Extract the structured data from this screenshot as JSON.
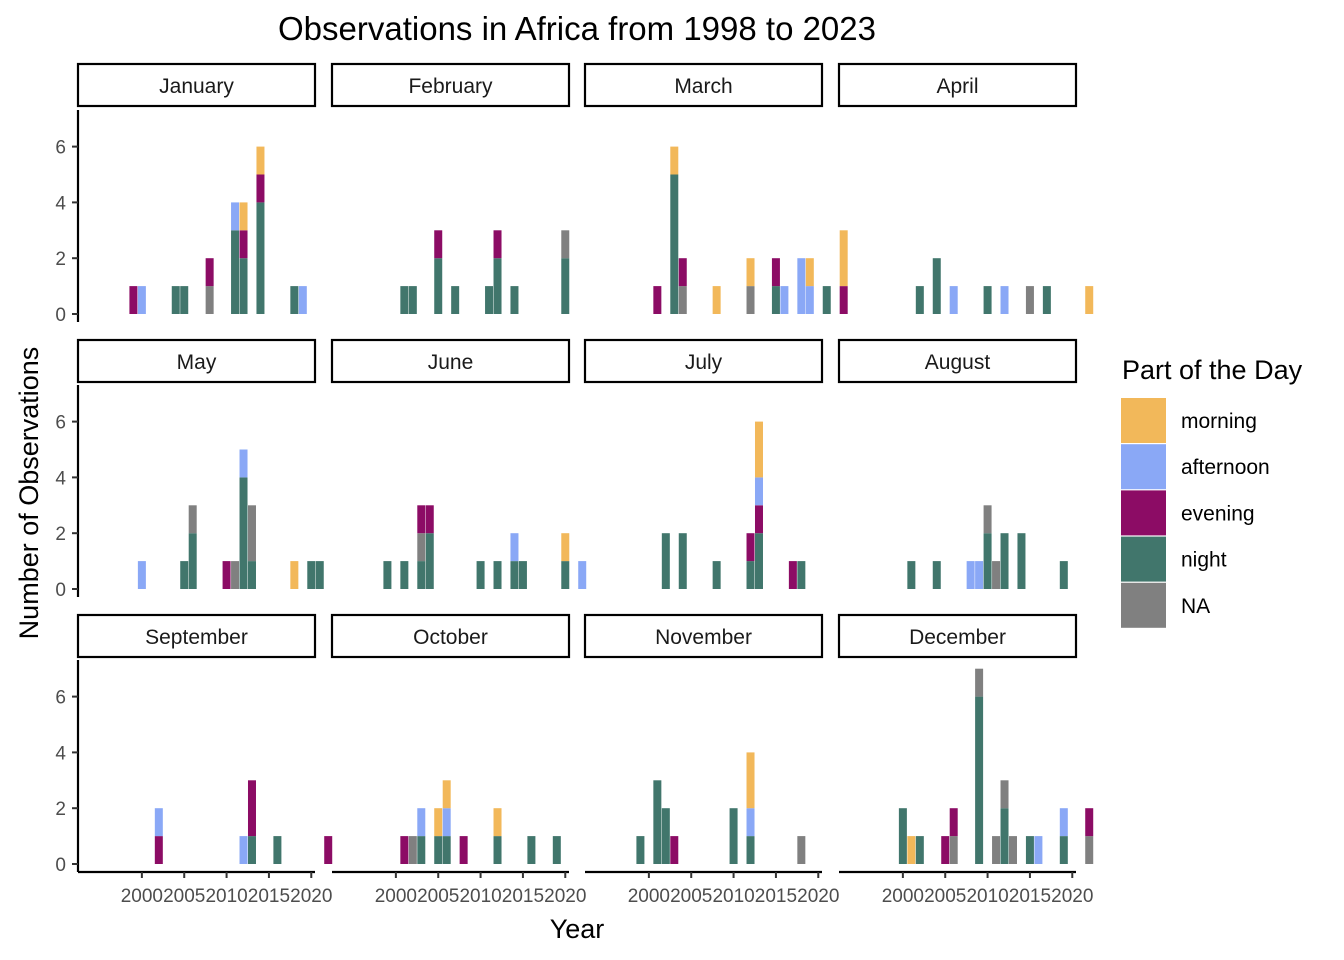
{
  "chart_data": {
    "type": "bar",
    "stacked": true,
    "faceted": true,
    "title": "Observations in Africa from 1998 to 2023",
    "xlabel": "Year",
    "ylabel": "Number of Observations",
    "xlim": [
      1996,
      2024
    ],
    "ylim": [
      0,
      7.3
    ],
    "x_ticks": [
      2000,
      2005,
      2010,
      2015,
      2020
    ],
    "y_ticks": [
      0,
      2,
      4,
      6
    ],
    "grid": false,
    "legend": {
      "title": "Part of the Day",
      "position": "right",
      "entries": [
        "morning",
        "afternoon",
        "evening",
        "night",
        "NA"
      ]
    },
    "colors": {
      "morning": "#F2B85A",
      "afternoon": "#8AA8F6",
      "evening": "#8C0C65",
      "night": "#41766C",
      "NA": "#808080"
    },
    "series_order": [
      "night",
      "NA",
      "evening",
      "afternoon",
      "morning"
    ],
    "facets": [
      {
        "name": "January",
        "bars": [
          {
            "year": 1999,
            "evening": 1
          },
          {
            "year": 2000,
            "afternoon": 1
          },
          {
            "year": 2004,
            "night": 1
          },
          {
            "year": 2005,
            "night": 1
          },
          {
            "year": 2008,
            "NA": 1,
            "evening": 1
          },
          {
            "year": 2011,
            "night": 3,
            "afternoon": 1
          },
          {
            "year": 2012,
            "night": 2,
            "evening": 1,
            "morning": 1
          },
          {
            "year": 2014,
            "night": 4,
            "evening": 1,
            "morning": 1
          },
          {
            "year": 2018,
            "night": 1
          },
          {
            "year": 2019,
            "afternoon": 1
          }
        ]
      },
      {
        "name": "February",
        "bars": [
          {
            "year": 2001,
            "night": 1
          },
          {
            "year": 2002,
            "night": 1
          },
          {
            "year": 2005,
            "night": 2,
            "evening": 1
          },
          {
            "year": 2007,
            "night": 1
          },
          {
            "year": 2011,
            "night": 1
          },
          {
            "year": 2012,
            "night": 2,
            "evening": 1
          },
          {
            "year": 2014,
            "night": 1
          },
          {
            "year": 2020,
            "NA": 1,
            "night": 2
          }
        ]
      },
      {
        "name": "March",
        "bars": [
          {
            "year": 2001,
            "evening": 1
          },
          {
            "year": 2003,
            "night": 5,
            "morning": 1
          },
          {
            "year": 2004,
            "NA": 1,
            "evening": 1
          },
          {
            "year": 2008,
            "morning": 1
          },
          {
            "year": 2012,
            "NA": 1,
            "morning": 1
          },
          {
            "year": 2015,
            "night": 1,
            "evening": 1
          },
          {
            "year": 2016,
            "afternoon": 1
          },
          {
            "year": 2018,
            "afternoon": 2
          },
          {
            "year": 2019,
            "afternoon": 1,
            "morning": 1
          },
          {
            "year": 2021,
            "night": 1
          },
          {
            "year": 2023,
            "evening": 1,
            "morning": 2
          }
        ]
      },
      {
        "name": "April",
        "bars": [
          {
            "year": 2002,
            "night": 1
          },
          {
            "year": 2004,
            "night": 2
          },
          {
            "year": 2006,
            "afternoon": 1
          },
          {
            "year": 2010,
            "night": 1
          },
          {
            "year": 2012,
            "afternoon": 1
          },
          {
            "year": 2015,
            "NA": 1
          },
          {
            "year": 2017,
            "night": 1
          },
          {
            "year": 2022,
            "morning": 1
          }
        ]
      },
      {
        "name": "May",
        "bars": [
          {
            "year": 2000,
            "afternoon": 1
          },
          {
            "year": 2005,
            "night": 1
          },
          {
            "year": 2006,
            "NA": 1,
            "night": 2
          },
          {
            "year": 2010,
            "evening": 1
          },
          {
            "year": 2011,
            "NA": 1
          },
          {
            "year": 2012,
            "night": 4,
            "afternoon": 1
          },
          {
            "year": 2013,
            "NA": 2,
            "night": 1
          },
          {
            "year": 2018,
            "morning": 1
          },
          {
            "year": 2020,
            "night": 1
          },
          {
            "year": 2021,
            "night": 1
          }
        ]
      },
      {
        "name": "June",
        "bars": [
          {
            "year": 1999,
            "night": 1
          },
          {
            "year": 2001,
            "night": 1
          },
          {
            "year": 2003,
            "NA": 1,
            "night": 1,
            "evening": 1
          },
          {
            "year": 2004,
            "night": 2,
            "evening": 1
          },
          {
            "year": 2010,
            "night": 1
          },
          {
            "year": 2012,
            "night": 1
          },
          {
            "year": 2014,
            "night": 1,
            "afternoon": 1
          },
          {
            "year": 2015,
            "night": 1
          },
          {
            "year": 2020,
            "night": 1,
            "morning": 1
          },
          {
            "year": 2022,
            "afternoon": 1
          }
        ]
      },
      {
        "name": "July",
        "bars": [
          {
            "year": 2002,
            "night": 2
          },
          {
            "year": 2004,
            "night": 2
          },
          {
            "year": 2008,
            "night": 1
          },
          {
            "year": 2012,
            "night": 1,
            "evening": 1
          },
          {
            "year": 2013,
            "night": 2,
            "evening": 1,
            "afternoon": 1,
            "morning": 2
          },
          {
            "year": 2017,
            "evening": 1
          },
          {
            "year": 2018,
            "night": 1
          }
        ]
      },
      {
        "name": "August",
        "bars": [
          {
            "year": 2001,
            "night": 1
          },
          {
            "year": 2004,
            "night": 1
          },
          {
            "year": 2008,
            "afternoon": 1
          },
          {
            "year": 2009,
            "afternoon": 1
          },
          {
            "year": 2010,
            "NA": 1,
            "night": 2
          },
          {
            "year": 2011,
            "NA": 1
          },
          {
            "year": 2012,
            "night": 2
          },
          {
            "year": 2014,
            "night": 2
          },
          {
            "year": 2019,
            "night": 1
          }
        ]
      },
      {
        "name": "September",
        "bars": [
          {
            "year": 2002,
            "evening": 1,
            "afternoon": 1
          },
          {
            "year": 2012,
            "afternoon": 1
          },
          {
            "year": 2013,
            "night": 1,
            "evening": 2
          },
          {
            "year": 2016,
            "night": 1
          },
          {
            "year": 2022,
            "evening": 1
          }
        ]
      },
      {
        "name": "October",
        "bars": [
          {
            "year": 2001,
            "evening": 1
          },
          {
            "year": 2002,
            "NA": 1
          },
          {
            "year": 2003,
            "night": 1,
            "afternoon": 1
          },
          {
            "year": 2005,
            "night": 1,
            "morning": 1
          },
          {
            "year": 2006,
            "night": 1,
            "afternoon": 1,
            "morning": 1
          },
          {
            "year": 2008,
            "evening": 1
          },
          {
            "year": 2012,
            "night": 1,
            "morning": 1
          },
          {
            "year": 2016,
            "night": 1
          },
          {
            "year": 2019,
            "night": 1
          }
        ]
      },
      {
        "name": "November",
        "bars": [
          {
            "year": 1999,
            "night": 1
          },
          {
            "year": 2001,
            "night": 3
          },
          {
            "year": 2002,
            "night": 2
          },
          {
            "year": 2003,
            "evening": 1
          },
          {
            "year": 2010,
            "night": 2
          },
          {
            "year": 2012,
            "night": 1,
            "afternoon": 1,
            "morning": 2
          },
          {
            "year": 2018,
            "NA": 1
          }
        ]
      },
      {
        "name": "December",
        "bars": [
          {
            "year": 2000,
            "night": 2
          },
          {
            "year": 2001,
            "morning": 1
          },
          {
            "year": 2002,
            "night": 1
          },
          {
            "year": 2005,
            "evening": 1
          },
          {
            "year": 2006,
            "NA": 1,
            "evening": 1
          },
          {
            "year": 2009,
            "NA": 1,
            "night": 6
          },
          {
            "year": 2011,
            "NA": 1
          },
          {
            "year": 2012,
            "NA": 1,
            "night": 2
          },
          {
            "year": 2013,
            "NA": 1
          },
          {
            "year": 2015,
            "night": 1
          },
          {
            "year": 2016,
            "afternoon": 1
          },
          {
            "year": 2019,
            "night": 1,
            "afternoon": 1
          },
          {
            "year": 2022,
            "NA": 1,
            "evening": 1
          }
        ]
      }
    ]
  }
}
